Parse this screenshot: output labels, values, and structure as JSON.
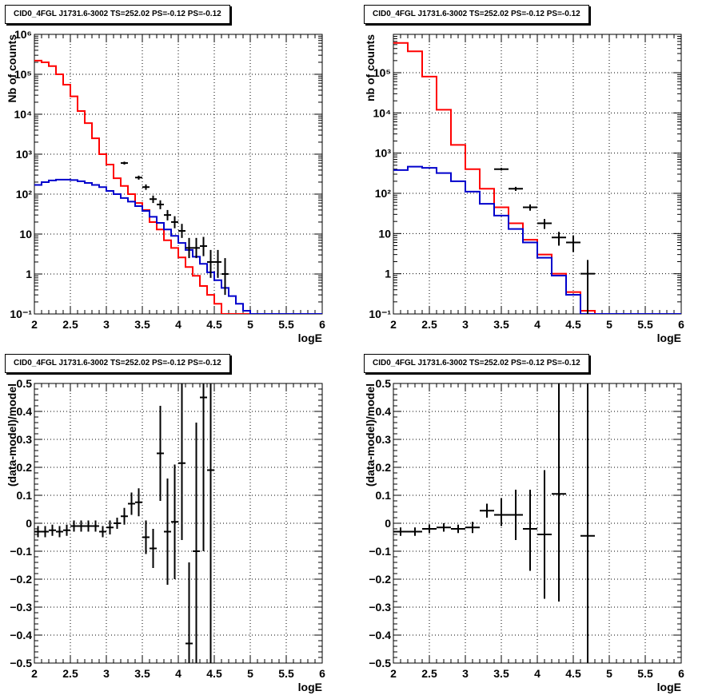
{
  "colors": {
    "total": "#ff0000",
    "background": "#0000cc",
    "data": "#000000",
    "frame": "#000000"
  },
  "chart_data": [
    {
      "type": "line",
      "title": "CID0_4FGL J1731.6-3002 TS=252.02 PS=-0.12 PS=-0.12",
      "xlabel": "logE",
      "ylabel": "Nb of counts",
      "xlim": [
        2,
        6
      ],
      "ylim": [
        0.1,
        1000000
      ],
      "yscale": "log",
      "grid": true,
      "xticks": [
        "2",
        "2.5",
        "3",
        "3.5",
        "4",
        "4.5",
        "5",
        "5.5",
        "6"
      ],
      "yticks": [
        "10⁻¹",
        "1",
        "10",
        "10²",
        "10³",
        "10⁴",
        "10⁵",
        "10⁶"
      ],
      "bin_width": 0.1,
      "series": [
        {
          "role": "total",
          "bins_start": 2.0,
          "values": [
            220000,
            200000,
            160000,
            100000,
            55000,
            28000,
            12000,
            6000,
            2500,
            1000,
            550,
            250,
            160,
            100,
            60,
            40,
            20,
            13,
            7,
            4.5,
            2.6,
            1.5,
            0.9,
            0.5,
            0.3,
            0.18,
            0.1,
            0.1,
            0.1,
            0.1,
            0.1,
            0.1,
            0.1,
            0.1,
            0.1,
            0.1,
            0.1,
            0.1,
            0.1,
            0.1
          ]
        },
        {
          "role": "background",
          "bins_start": 2.0,
          "values": [
            170,
            200,
            220,
            230,
            230,
            225,
            210,
            190,
            170,
            150,
            120,
            100,
            80,
            65,
            50,
            38,
            27,
            19,
            13,
            9,
            6,
            4,
            2.7,
            1.8,
            1.1,
            0.7,
            0.45,
            0.28,
            0.18,
            0.12,
            0.1,
            0.1,
            0.1,
            0.1,
            0.1,
            0.1,
            0.1,
            0.1,
            0.1,
            0.1
          ]
        },
        {
          "role": "data",
          "points": [
            {
              "x": 3.25,
              "y": 600,
              "ylo": 550,
              "yhi": 650
            },
            {
              "x": 3.45,
              "y": 260,
              "ylo": 230,
              "yhi": 290
            },
            {
              "x": 3.55,
              "y": 150,
              "ylo": 128,
              "yhi": 175
            },
            {
              "x": 3.65,
              "y": 75,
              "ylo": 60,
              "yhi": 92
            },
            {
              "x": 3.75,
              "y": 55,
              "ylo": 42,
              "yhi": 70
            },
            {
              "x": 3.85,
              "y": 30,
              "ylo": 22,
              "yhi": 40
            },
            {
              "x": 3.95,
              "y": 20,
              "ylo": 14,
              "yhi": 28
            },
            {
              "x": 4.05,
              "y": 12,
              "ylo": 8,
              "yhi": 18
            },
            {
              "x": 4.15,
              "y": 4.5,
              "ylo": 2.5,
              "yhi": 8
            },
            {
              "x": 4.25,
              "y": 4.5,
              "ylo": 2.5,
              "yhi": 8
            },
            {
              "x": 4.35,
              "y": 5,
              "ylo": 2.8,
              "yhi": 8.5
            },
            {
              "x": 4.45,
              "y": 2,
              "ylo": 0.8,
              "yhi": 4
            },
            {
              "x": 4.55,
              "y": 2,
              "ylo": 0.8,
              "yhi": 4
            },
            {
              "x": 4.65,
              "y": 1,
              "ylo": 0.3,
              "yhi": 2.5
            }
          ]
        }
      ]
    },
    {
      "type": "line",
      "title": "CID0_4FGL J1731.6-3002 TS=252.02 PS=-0.12 PS=-0.12",
      "xlabel": "logE",
      "ylabel": "nb of counts",
      "xlim": [
        2,
        6
      ],
      "ylim": [
        0.1,
        900000
      ],
      "yscale": "log",
      "grid": true,
      "xticks": [
        "2",
        "2.5",
        "3",
        "3.5",
        "4",
        "4.5",
        "5",
        "5.5",
        "6"
      ],
      "yticks": [
        "10⁻¹",
        "1",
        "10",
        "10²",
        "10³",
        "10⁴",
        "10⁵"
      ],
      "bin_width": 0.2,
      "series": [
        {
          "role": "total",
          "bins_start": 2.0,
          "values": [
            550000,
            340000,
            80000,
            12000,
            1600,
            400,
            130,
            45,
            18,
            7,
            3,
            1,
            0.35,
            0.12,
            0.1,
            0.1,
            0.1,
            0.1,
            0.1,
            0.1
          ]
        },
        {
          "role": "background",
          "bins_start": 2.0,
          "values": [
            380,
            460,
            430,
            320,
            200,
            110,
            55,
            28,
            13,
            6,
            2.5,
            0.9,
            0.3,
            0.1,
            0.1,
            0.1,
            0.1,
            0.1,
            0.1,
            0.1
          ]
        },
        {
          "role": "data",
          "points": [
            {
              "x": 3.5,
              "y": 400,
              "ylo": 370,
              "yhi": 430
            },
            {
              "x": 3.7,
              "y": 130,
              "ylo": 115,
              "yhi": 145
            },
            {
              "x": 3.9,
              "y": 45,
              "ylo": 37,
              "yhi": 53
            },
            {
              "x": 4.1,
              "y": 18,
              "ylo": 13,
              "yhi": 23
            },
            {
              "x": 4.3,
              "y": 8,
              "ylo": 5,
              "yhi": 11
            },
            {
              "x": 4.5,
              "y": 6,
              "ylo": 3.5,
              "yhi": 9
            },
            {
              "x": 4.7,
              "y": 1,
              "ylo": 0.1,
              "yhi": 2.2
            }
          ]
        }
      ]
    },
    {
      "type": "scatter",
      "title": "CID0_4FGL J1731.6-3002 TS=252.02 PS=-0.12 PS=-0.12",
      "xlabel": "logE",
      "ylabel": "(data-model)/model",
      "xlim": [
        2,
        6
      ],
      "ylim": [
        -0.5,
        0.5
      ],
      "grid": true,
      "xticks": [
        "2",
        "2.5",
        "3",
        "3.5",
        "4",
        "4.5",
        "5",
        "5.5",
        "6"
      ],
      "yticks": [
        "−0.5",
        "−0.4",
        "−0.3",
        "−0.2",
        "−0.1",
        "0",
        "0.1",
        "0.2",
        "0.3",
        "0.4",
        "0.5"
      ],
      "bin_width": 0.1,
      "points": [
        {
          "x": 2.05,
          "y": -0.03,
          "ylo": -0.05,
          "yhi": -0.01
        },
        {
          "x": 2.15,
          "y": -0.03,
          "ylo": -0.05,
          "yhi": -0.01
        },
        {
          "x": 2.25,
          "y": -0.025,
          "ylo": -0.045,
          "yhi": -0.005
        },
        {
          "x": 2.35,
          "y": -0.03,
          "ylo": -0.05,
          "yhi": -0.01
        },
        {
          "x": 2.45,
          "y": -0.025,
          "ylo": -0.045,
          "yhi": -0.005
        },
        {
          "x": 2.55,
          "y": -0.01,
          "ylo": -0.03,
          "yhi": 0.01
        },
        {
          "x": 2.65,
          "y": -0.01,
          "ylo": -0.03,
          "yhi": 0.01
        },
        {
          "x": 2.75,
          "y": -0.01,
          "ylo": -0.03,
          "yhi": 0.01
        },
        {
          "x": 2.85,
          "y": -0.01,
          "ylo": -0.03,
          "yhi": 0.01
        },
        {
          "x": 2.95,
          "y": -0.03,
          "ylo": -0.05,
          "yhi": -0.01
        },
        {
          "x": 3.05,
          "y": -0.015,
          "ylo": -0.04,
          "yhi": 0.01
        },
        {
          "x": 3.15,
          "y": 0.0,
          "ylo": -0.02,
          "yhi": 0.02
        },
        {
          "x": 3.25,
          "y": 0.025,
          "ylo": -0.005,
          "yhi": 0.055
        },
        {
          "x": 3.35,
          "y": 0.07,
          "ylo": 0.03,
          "yhi": 0.11
        },
        {
          "x": 3.45,
          "y": 0.075,
          "ylo": 0.025,
          "yhi": 0.125
        },
        {
          "x": 3.55,
          "y": -0.05,
          "ylo": -0.11,
          "yhi": 0.01
        },
        {
          "x": 3.65,
          "y": -0.09,
          "ylo": -0.16,
          "yhi": -0.02
        },
        {
          "x": 3.75,
          "y": 0.25,
          "ylo": 0.08,
          "yhi": 0.42
        },
        {
          "x": 3.85,
          "y": -0.03,
          "ylo": -0.22,
          "yhi": 0.16
        },
        {
          "x": 3.95,
          "y": 0.005,
          "ylo": -0.2,
          "yhi": 0.21
        },
        {
          "x": 4.05,
          "y": 0.215,
          "ylo": -0.06,
          "yhi": 0.5
        },
        {
          "x": 4.15,
          "y": -0.43,
          "ylo": -0.5,
          "yhi": -0.14
        },
        {
          "x": 4.25,
          "y": -0.1,
          "ylo": -0.5,
          "yhi": 0.36
        },
        {
          "x": 4.35,
          "y": 0.45,
          "ylo": -0.1,
          "yhi": 0.5
        },
        {
          "x": 4.45,
          "y": 0.19,
          "ylo": -0.5,
          "yhi": 0.5
        }
      ]
    },
    {
      "type": "scatter",
      "title": "CID0_4FGL J1731.6-3002 TS=252.02 PS=-0.12 PS=-0.12",
      "xlabel": "logE",
      "ylabel": "(data-model)/model",
      "xlim": [
        2,
        6
      ],
      "ylim": [
        -0.5,
        0.5
      ],
      "grid": true,
      "xticks": [
        "2",
        "2.5",
        "3",
        "3.5",
        "4",
        "4.5",
        "5",
        "5.5",
        "6"
      ],
      "yticks": [
        "−0.5",
        "−0.4",
        "−0.3",
        "−0.2",
        "−0.1",
        "0",
        "0.1",
        "0.2",
        "0.3",
        "0.4",
        "0.5"
      ],
      "bin_width": 0.2,
      "points": [
        {
          "x": 2.1,
          "y": -0.03,
          "ylo": -0.045,
          "yhi": -0.015
        },
        {
          "x": 2.3,
          "y": -0.03,
          "ylo": -0.045,
          "yhi": -0.015
        },
        {
          "x": 2.5,
          "y": -0.02,
          "ylo": -0.035,
          "yhi": -0.005
        },
        {
          "x": 2.7,
          "y": -0.015,
          "ylo": -0.03,
          "yhi": 0.0
        },
        {
          "x": 2.9,
          "y": -0.02,
          "ylo": -0.035,
          "yhi": -0.005
        },
        {
          "x": 3.1,
          "y": -0.015,
          "ylo": -0.035,
          "yhi": 0.005
        },
        {
          "x": 3.3,
          "y": 0.045,
          "ylo": 0.02,
          "yhi": 0.07
        },
        {
          "x": 3.5,
          "y": 0.03,
          "ylo": -0.01,
          "yhi": 0.09
        },
        {
          "x": 3.7,
          "y": 0.03,
          "ylo": -0.06,
          "yhi": 0.12
        },
        {
          "x": 3.9,
          "y": -0.02,
          "ylo": -0.17,
          "yhi": 0.12
        },
        {
          "x": 4.1,
          "y": -0.04,
          "ylo": -0.27,
          "yhi": 0.19
        },
        {
          "x": 4.3,
          "y": 0.105,
          "ylo": -0.28,
          "yhi": 0.5
        },
        {
          "x": 4.7,
          "y": -0.045,
          "ylo": -0.5,
          "yhi": 0.5
        }
      ]
    }
  ]
}
